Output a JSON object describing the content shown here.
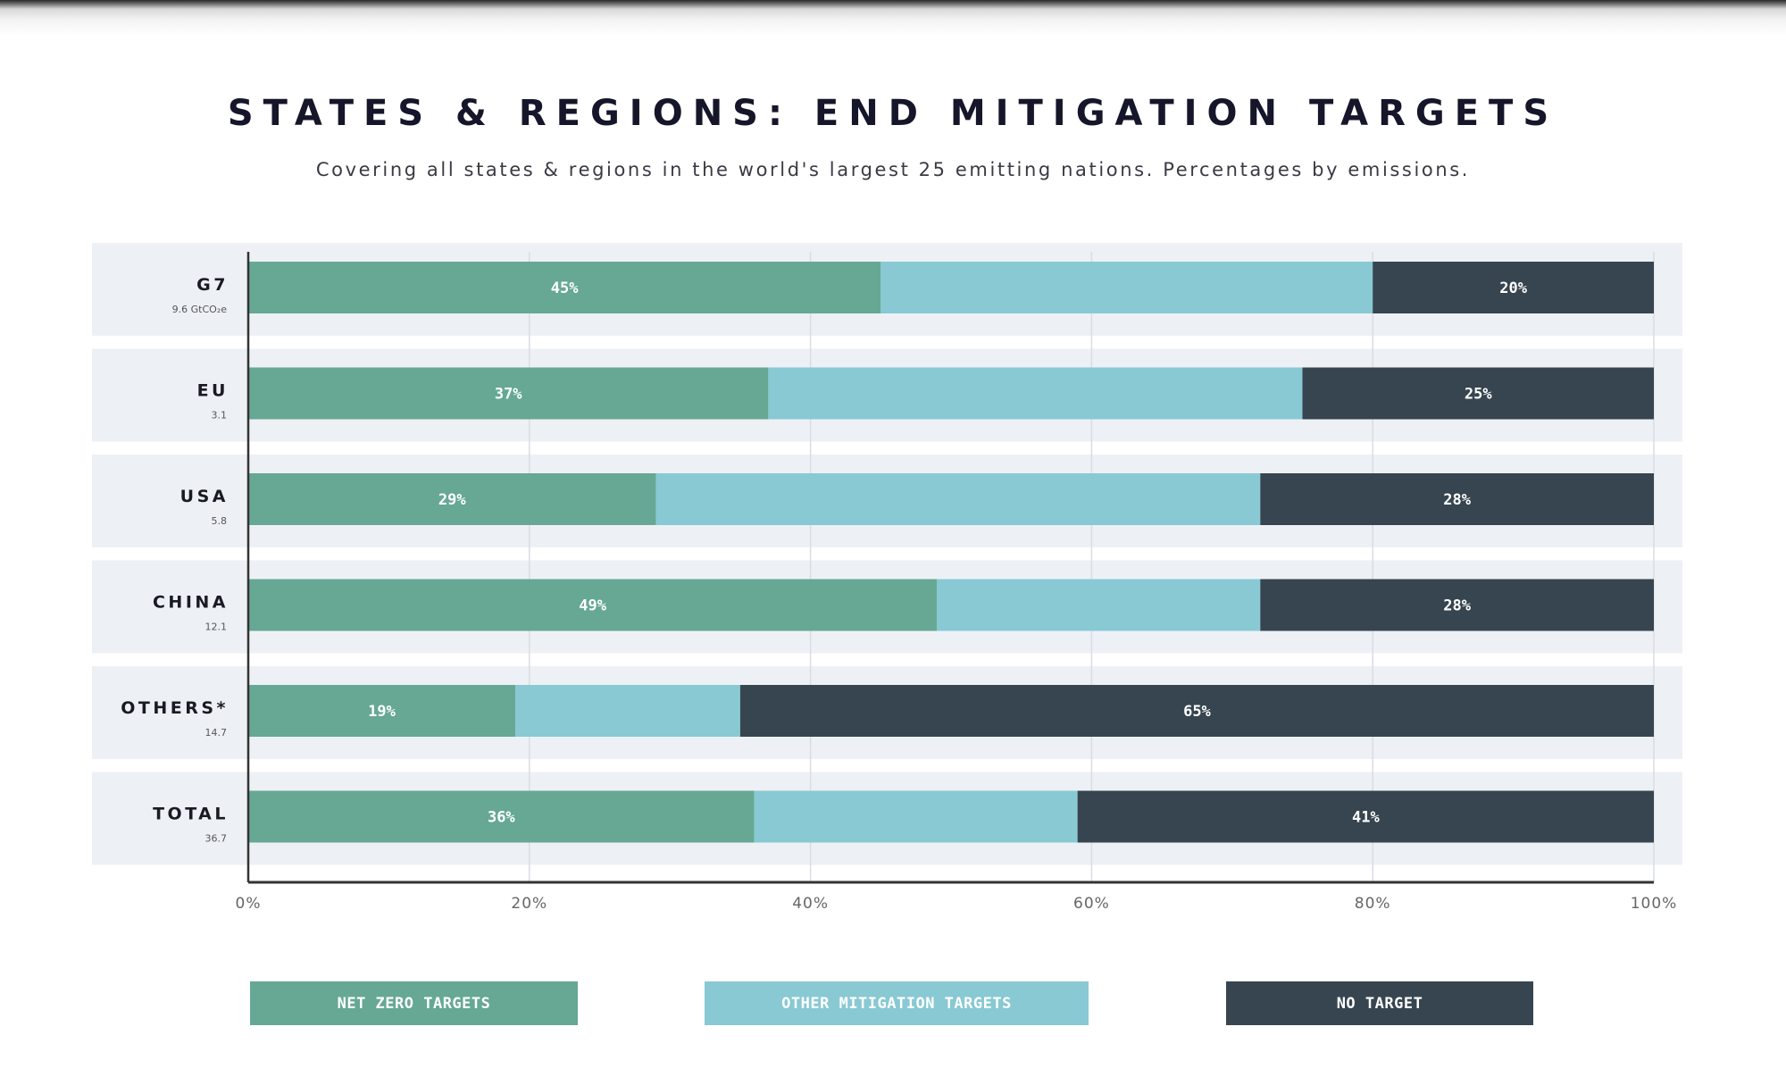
{
  "title": "STATES & REGIONS: END MITIGATION TARGETS",
  "subtitle": "Covering all states & regions in the world's largest 25 emitting nations. Percentages by emissions.",
  "colors": {
    "net_zero": "#66a893",
    "other_mitigation": "#88c9d3",
    "no_target": "#36454f",
    "row_band": "#edf1f6",
    "axis": "#333333",
    "grid": "#d9dde3",
    "label_text": "#1a1a24",
    "sub_text": "#555555"
  },
  "legend": {
    "net_zero": "NET ZERO TARGETS",
    "other_mitigation": "OTHER MITIGATION TARGETS",
    "no_target": "NO TARGET"
  },
  "chart_data": {
    "type": "bar",
    "orientation": "horizontal",
    "stacked": true,
    "title": "STATES & REGIONS: END MITIGATION TARGETS",
    "subtitle": "Covering all states & regions in the world's largest 25 emitting nations. Percentages by emissions.",
    "xlabel": "",
    "ylabel": "",
    "xlim": [
      0,
      100
    ],
    "x_ticks": [
      "0%",
      "20%",
      "40%",
      "60%",
      "80%",
      "100%"
    ],
    "x_tick_values": [
      0,
      20,
      40,
      60,
      80,
      100
    ],
    "grid": true,
    "legend_position": "bottom",
    "categories": [
      "G7",
      "EU",
      "USA",
      "CHINA",
      "OTHERS*",
      "TOTAL"
    ],
    "category_sublabels": [
      "9.6 GtCO₂e",
      "3.1",
      "5.8",
      "12.1",
      "14.7",
      "36.7"
    ],
    "series": [
      {
        "name": "NET ZERO TARGETS",
        "color_key": "net_zero",
        "values": [
          45,
          37,
          29,
          49,
          19,
          36
        ],
        "labels": [
          "45%",
          "37%",
          "29%",
          "49%",
          "19%",
          "36%"
        ]
      },
      {
        "name": "OTHER MITIGATION TARGETS",
        "color_key": "other_mitigation",
        "values": [
          35,
          38,
          43,
          23,
          16,
          23
        ],
        "labels": [
          "",
          "",
          "",
          "",
          "",
          ""
        ]
      },
      {
        "name": "NO TARGET",
        "color_key": "no_target",
        "values": [
          20,
          25,
          28,
          28,
          65,
          41
        ],
        "labels": [
          "20%",
          "25%",
          "28%",
          "28%",
          "65%",
          "41%"
        ]
      }
    ]
  }
}
